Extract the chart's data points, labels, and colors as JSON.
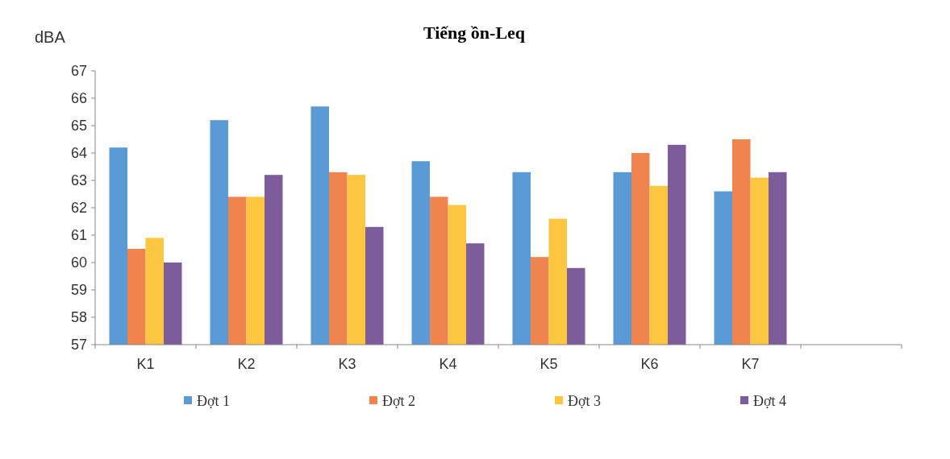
{
  "chart_data": {
    "type": "bar",
    "title": "Tiếng ồn-Leq",
    "ylabel": "dBA",
    "categories": [
      "K1",
      "K2",
      "K3",
      "K4",
      "K5",
      "K6",
      "K7",
      null
    ],
    "series": [
      {
        "name": "Đợt 1",
        "color": "#5b9bd5",
        "values": [
          64.2,
          65.2,
          65.7,
          63.7,
          63.3,
          63.3,
          62.6,
          null
        ]
      },
      {
        "name": "Đợt 2",
        "color": "#f0844f",
        "values": [
          60.5,
          62.4,
          63.3,
          62.4,
          60.2,
          64.0,
          64.5,
          null
        ]
      },
      {
        "name": "Đợt 3",
        "color": "#fcc63e",
        "values": [
          60.9,
          62.4,
          63.2,
          62.1,
          61.6,
          62.8,
          63.1,
          null
        ]
      },
      {
        "name": "Đợt 4",
        "color": "#7d5c9c",
        "values": [
          60.0,
          63.2,
          61.3,
          60.7,
          59.8,
          64.3,
          63.3,
          null
        ]
      }
    ],
    "ylim": [
      57,
      67
    ],
    "yticks": [
      57,
      58,
      59,
      60,
      61,
      62,
      63,
      64,
      65,
      66,
      67
    ],
    "grid": false,
    "legend": "bottom"
  }
}
